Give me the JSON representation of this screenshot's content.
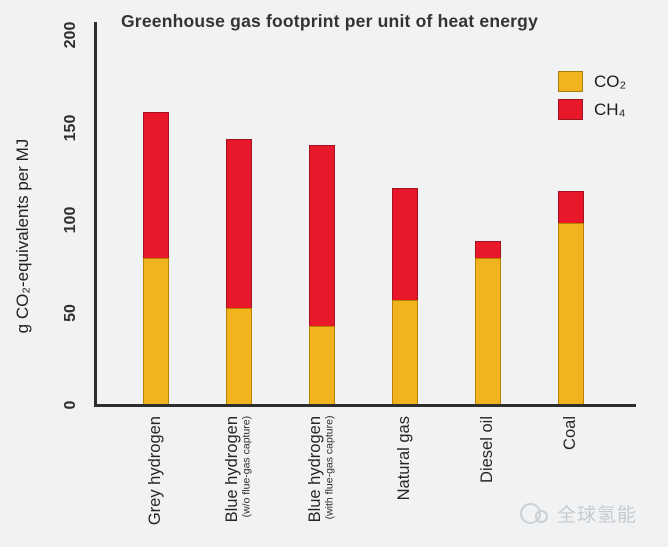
{
  "watermark": {
    "text": "全球氢能",
    "icon": "overlapping-circles-logo",
    "color": "#C8CBCD"
  },
  "colors": {
    "co2": "#F2B41E",
    "ch4": "#E8182A",
    "axis": "#2D2D2D",
    "background": "#F1F2F4"
  },
  "chart_data": {
    "type": "bar",
    "stacked": true,
    "title": "Greenhouse gas footprint per unit of heat energy",
    "xlabel": "",
    "ylabel": "g CO₂-equivalents per MJ",
    "ylim": [
      0,
      200
    ],
    "yticks": [
      0,
      50,
      100,
      150,
      200
    ],
    "grid": false,
    "legend_position": "upper-right",
    "categories": [
      "Grey hydrogen",
      "Blue hydrogen",
      "Blue hydrogen",
      "Natural gas",
      "Diesel oil",
      "Coal"
    ],
    "category_subnotes": [
      "",
      "(w/o flue-gas capture)",
      "(with flue-gas capture)",
      "",
      "",
      ""
    ],
    "series": [
      {
        "name": "CO₂",
        "color": "#F2B41E",
        "values": [
          79,
          52,
          42,
          56,
          79,
          98
        ]
      },
      {
        "name": "CH₄",
        "color": "#E8182A",
        "values": [
          79,
          91,
          98,
          61,
          9,
          17
        ]
      }
    ],
    "totals": [
      158,
      143,
      140,
      117,
      88,
      115
    ]
  }
}
